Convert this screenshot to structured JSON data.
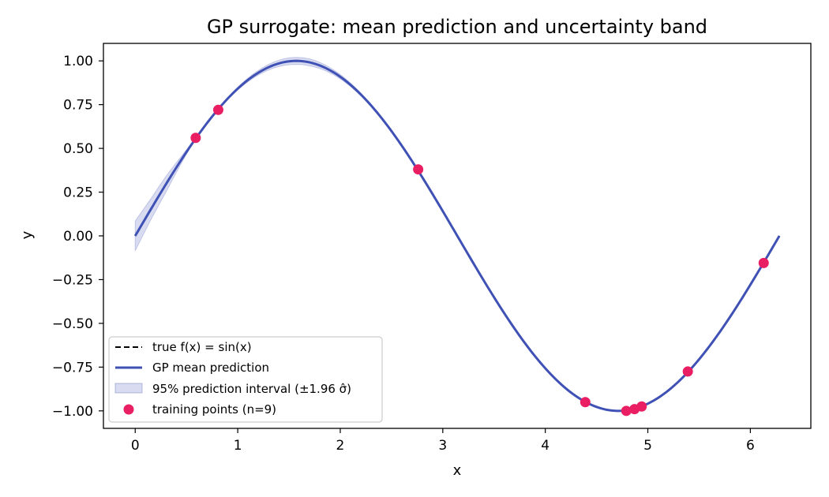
{
  "chart_data": {
    "type": "line",
    "title": "GP surrogate: mean prediction and uncertainty band",
    "xlabel": "x",
    "ylabel": "y",
    "xlim": [
      -0.31,
      6.59
    ],
    "ylim": [
      -1.1,
      1.1
    ],
    "x_ticks": [
      0,
      1,
      2,
      3,
      4,
      5,
      6
    ],
    "x_tick_labels": [
      "0",
      "1",
      "2",
      "3",
      "4",
      "5",
      "6"
    ],
    "y_ticks": [
      1.0,
      0.75,
      0.5,
      0.25,
      0.0,
      -0.25,
      -0.5,
      -0.75,
      -1.0
    ],
    "y_tick_labels": [
      "1.00",
      "0.75",
      "0.50",
      "0.25",
      "0.00",
      "−0.25",
      "−0.50",
      "−0.75",
      "−1.00"
    ],
    "grid": false,
    "legend_position": "lower-left",
    "series": [
      {
        "name": "true f(x) = sin(x)",
        "style": "dashed",
        "color": "#000000",
        "function": "sin(x)",
        "x_range": [
          0,
          6.283
        ]
      },
      {
        "name": "GP mean prediction",
        "style": "solid",
        "color": "#3f51b5",
        "function": "sin(x)",
        "x_range": [
          0,
          6.283
        ]
      },
      {
        "name": "95% prediction interval (±1.96 σ̂)",
        "style": "band",
        "color": "#3f51b5",
        "band_half_width": [
          [
            0.0,
            0.085
          ],
          [
            0.15,
            0.06
          ],
          [
            0.3,
            0.045
          ],
          [
            0.45,
            0.02
          ],
          [
            0.59,
            0.0
          ],
          [
            0.7,
            0.005
          ],
          [
            0.8,
            0.0
          ],
          [
            1.0,
            0.008
          ],
          [
            1.3,
            0.016
          ],
          [
            1.5,
            0.02
          ],
          [
            1.7,
            0.02
          ],
          [
            1.9,
            0.015
          ],
          [
            2.2,
            0.008
          ],
          [
            2.5,
            0.003
          ],
          [
            2.76,
            0.0
          ],
          [
            3.5,
            0.0
          ],
          [
            4.39,
            0.0
          ],
          [
            6.283,
            0.0
          ]
        ]
      },
      {
        "name": "training points (n=9)",
        "style": "scatter",
        "color": "#e91e63",
        "points": [
          [
            0.59,
            0.56
          ],
          [
            0.81,
            0.72
          ],
          [
            2.76,
            0.38
          ],
          [
            4.39,
            -0.95
          ],
          [
            4.79,
            -1.0
          ],
          [
            4.87,
            -0.99
          ],
          [
            4.94,
            -0.975
          ],
          [
            5.39,
            -0.775
          ],
          [
            6.13,
            -0.155
          ]
        ]
      }
    ]
  }
}
